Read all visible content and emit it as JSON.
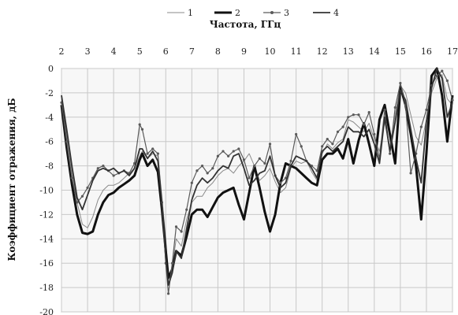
{
  "chart_data": {
    "type": "line",
    "title": "",
    "xlabel": "Частота, ГГц",
    "ylabel": "Коэффициент отражения, дБ",
    "xaxis_position": "top",
    "xlim": [
      2,
      17
    ],
    "ylim": [
      -20,
      0
    ],
    "xticks": [
      "2",
      "3",
      "4",
      "5",
      "6",
      "7",
      "8",
      "9",
      "10",
      "11",
      "12",
      "13",
      "14",
      "15",
      "16",
      "17"
    ],
    "yticks": [
      "0",
      "-2",
      "-4",
      "-6",
      "-8",
      "-10",
      "-12",
      "-14",
      "-16",
      "-18",
      "-20"
    ],
    "grid": true,
    "legend_position": "top",
    "series": [
      {
        "name": "1",
        "style": "thin",
        "color": "#8a8a8a",
        "x": [
          2,
          2.2,
          2.4,
          2.6,
          2.8,
          3,
          3.2,
          3.4,
          3.6,
          3.8,
          4,
          4.2,
          4.4,
          4.6,
          4.8,
          5,
          5.1,
          5.3,
          5.5,
          5.7,
          5.85,
          6,
          6.1,
          6.25,
          6.4,
          6.6,
          6.8,
          7,
          7.2,
          7.4,
          7.6,
          7.8,
          8,
          8.2,
          8.4,
          8.6,
          8.8,
          9,
          9.2,
          9.4,
          9.6,
          9.8,
          10,
          10.2,
          10.4,
          10.6,
          10.8,
          11,
          11.2,
          11.4,
          11.6,
          11.8,
          12,
          12.2,
          12.4,
          12.6,
          12.8,
          13,
          13.2,
          13.4,
          13.6,
          13.8,
          14,
          14.2,
          14.4,
          14.6,
          14.8,
          15,
          15.2,
          15.4,
          15.6,
          15.8,
          16,
          16.2,
          16.4,
          16.6,
          16.8,
          17
        ],
        "y": [
          -2.5,
          -5.5,
          -8.5,
          -11,
          -12.8,
          -13.1,
          -12.2,
          -10.8,
          -10,
          -9.6,
          -9.6,
          -9.4,
          -9,
          -8.6,
          -8.2,
          -7.2,
          -6.8,
          -7.4,
          -7,
          -7.2,
          -10.5,
          -14,
          -17.4,
          -16.3,
          -14,
          -14.6,
          -12.4,
          -11,
          -10.5,
          -10.5,
          -9.8,
          -9.4,
          -8.8,
          -8.4,
          -8.2,
          -8.6,
          -8,
          -7.6,
          -7,
          -8,
          -9.2,
          -8.8,
          -8.2,
          -9.3,
          -10.2,
          -9.8,
          -8.2,
          -7.6,
          -7.8,
          -7.6,
          -8.5,
          -9.2,
          -7,
          -6.2,
          -6.6,
          -6.1,
          -5.8,
          -4.2,
          -4.4,
          -4.8,
          -5.2,
          -4.5,
          -5.8,
          -6.8,
          -4.4,
          -6.4,
          -3.8,
          -1.4,
          -2,
          -3.8,
          -5.6,
          -6.3,
          -4.2,
          -2,
          -0.8,
          -0.5,
          -2.5,
          -3
        ]
      },
      {
        "name": "2",
        "style": "thick",
        "color": "#111111",
        "x": [
          2,
          2.2,
          2.4,
          2.6,
          2.8,
          3,
          3.2,
          3.4,
          3.6,
          3.8,
          4,
          4.2,
          4.4,
          4.6,
          4.8,
          5,
          5.1,
          5.3,
          5.5,
          5.7,
          5.85,
          6,
          6.1,
          6.25,
          6.4,
          6.6,
          6.8,
          7,
          7.2,
          7.4,
          7.6,
          7.8,
          8,
          8.2,
          8.4,
          8.6,
          8.8,
          9,
          9.2,
          9.4,
          9.6,
          9.8,
          10,
          10.2,
          10.4,
          10.6,
          10.8,
          11,
          11.2,
          11.4,
          11.6,
          11.8,
          12,
          12.2,
          12.4,
          12.6,
          12.8,
          13,
          13.2,
          13.4,
          13.6,
          13.8,
          14,
          14.2,
          14.4,
          14.6,
          14.8,
          15,
          15.2,
          15.4,
          15.6,
          15.8,
          16,
          16.2,
          16.4,
          16.6,
          16.8,
          17
        ],
        "y": [
          -3,
          -6.5,
          -9.5,
          -12,
          -13.5,
          -13.6,
          -13.4,
          -12,
          -11,
          -10.4,
          -10.2,
          -9.8,
          -9.5,
          -9.2,
          -8.8,
          -7.5,
          -7,
          -8,
          -7.5,
          -8.5,
          -11.5,
          -15,
          -17.2,
          -16.5,
          -15,
          -15.4,
          -13.8,
          -12,
          -11.6,
          -11.6,
          -12.2,
          -11.4,
          -10.6,
          -10.2,
          -10,
          -9.8,
          -11.2,
          -12.4,
          -10.2,
          -8,
          -9.8,
          -11.8,
          -13.4,
          -12,
          -9.4,
          -7.8,
          -8,
          -8.2,
          -8.6,
          -9,
          -9.4,
          -9.6,
          -7.5,
          -7,
          -7,
          -6.6,
          -7.4,
          -5.8,
          -7.8,
          -5.9,
          -4.5,
          -6.2,
          -8,
          -4.2,
          -3,
          -5.4,
          -7.8,
          -1.5,
          -3,
          -5.4,
          -8,
          -12.4,
          -7,
          -0.6,
          0,
          -2.2,
          -6,
          -2.2
        ]
      },
      {
        "name": "3",
        "style": "thin-marked",
        "color": "#5a5a5a",
        "x": [
          2,
          2.2,
          2.4,
          2.6,
          2.8,
          3,
          3.2,
          3.4,
          3.6,
          3.8,
          4,
          4.2,
          4.4,
          4.6,
          4.8,
          5,
          5.1,
          5.3,
          5.5,
          5.7,
          5.85,
          6,
          6.1,
          6.25,
          6.4,
          6.6,
          6.8,
          7,
          7.2,
          7.4,
          7.6,
          7.8,
          8,
          8.2,
          8.4,
          8.6,
          8.8,
          9,
          9.2,
          9.4,
          9.6,
          9.8,
          10,
          10.2,
          10.4,
          10.6,
          10.8,
          11,
          11.2,
          11.4,
          11.6,
          11.8,
          12,
          12.2,
          12.4,
          12.6,
          12.8,
          13,
          13.2,
          13.4,
          13.6,
          13.8,
          14,
          14.2,
          14.4,
          14.6,
          14.8,
          15,
          15.2,
          15.4,
          15.6,
          15.8,
          16,
          16.2,
          16.4,
          16.6,
          16.8,
          17
        ],
        "y": [
          -2.8,
          -6,
          -9,
          -11,
          -10.5,
          -9.8,
          -9,
          -8.2,
          -8,
          -8.4,
          -8.8,
          -8.6,
          -8.4,
          -8.6,
          -7.8,
          -4.6,
          -5,
          -7,
          -6.6,
          -7,
          -11,
          -16,
          -18.5,
          -16,
          -13,
          -13.4,
          -11.6,
          -9.4,
          -8.4,
          -8,
          -8.6,
          -8.2,
          -7.2,
          -6.8,
          -7.2,
          -6.8,
          -6.6,
          -7.5,
          -9,
          -8,
          -7.4,
          -7.8,
          -6.2,
          -8.8,
          -9.4,
          -9,
          -7.6,
          -5.4,
          -6.4,
          -7.6,
          -8,
          -8.4,
          -6.4,
          -5.8,
          -6.2,
          -5.2,
          -4.8,
          -4,
          -3.8,
          -3.8,
          -4.6,
          -3.6,
          -5.4,
          -7.4,
          -3.4,
          -7,
          -3.2,
          -1.2,
          -3,
          -8.6,
          -7,
          -4.8,
          -3.4,
          -1.4,
          -0.6,
          -0.2,
          -1,
          -2.6
        ]
      },
      {
        "name": "4",
        "style": "medium",
        "color": "#333333",
        "x": [
          2,
          2.2,
          2.4,
          2.6,
          2.8,
          3,
          3.2,
          3.4,
          3.6,
          3.8,
          4,
          4.2,
          4.4,
          4.6,
          4.8,
          5,
          5.1,
          5.3,
          5.5,
          5.7,
          5.85,
          6,
          6.1,
          6.25,
          6.4,
          6.6,
          6.8,
          7,
          7.2,
          7.4,
          7.6,
          7.8,
          8,
          8.2,
          8.4,
          8.6,
          8.8,
          9,
          9.2,
          9.4,
          9.6,
          9.8,
          10,
          10.2,
          10.4,
          10.6,
          10.8,
          11,
          11.2,
          11.4,
          11.6,
          11.8,
          12,
          12.2,
          12.4,
          12.6,
          12.8,
          13,
          13.2,
          13.4,
          13.6,
          13.8,
          14,
          14.2,
          14.4,
          14.6,
          14.8,
          15,
          15.2,
          15.4,
          15.6,
          15.8,
          16,
          16.2,
          16.4,
          16.6,
          16.8,
          17
        ],
        "y": [
          -2.2,
          -5,
          -8,
          -10.6,
          -11.6,
          -10.4,
          -9.2,
          -8.4,
          -8.2,
          -8.4,
          -8.2,
          -8.6,
          -8.4,
          -8.8,
          -8.2,
          -6.6,
          -6.6,
          -7.4,
          -6.8,
          -7.6,
          -11,
          -15.6,
          -17.8,
          -16.8,
          -15,
          -15.6,
          -13.2,
          -10.8,
          -9.6,
          -9,
          -9.4,
          -9,
          -8.4,
          -8,
          -8.2,
          -7.2,
          -7,
          -8.2,
          -9.6,
          -9.2,
          -8.6,
          -8.4,
          -7.2,
          -8.8,
          -9.8,
          -9.4,
          -8,
          -7.2,
          -7.4,
          -7.6,
          -8.2,
          -9,
          -6.8,
          -6.4,
          -6.8,
          -6.4,
          -6,
          -4.8,
          -5.2,
          -5.2,
          -5.6,
          -5,
          -6.2,
          -7.8,
          -4,
          -6.8,
          -4.4,
          -1.8,
          -2.6,
          -5,
          -7.4,
          -9.4,
          -4.4,
          -1.6,
          0,
          -0.8,
          -4,
          -2.8
        ]
      }
    ]
  }
}
